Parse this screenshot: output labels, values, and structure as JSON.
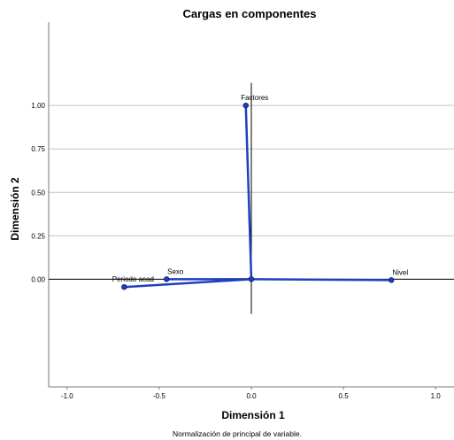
{
  "chart_data": {
    "type": "scatter",
    "title": "Cargas en componentes",
    "xlabel": "Dimensión 1",
    "ylabel": "Dimensión 2",
    "footnote": "Normalización de principal de variable.",
    "xlim": [
      -1.1,
      1.1
    ],
    "ylim": [
      -0.62,
      1.48
    ],
    "xticks": [
      -1.0,
      -0.5,
      0.0,
      0.5,
      1.0
    ],
    "xtick_labels": [
      "-1.0",
      "-0.5",
      "0.0",
      "0.5",
      "1.0"
    ],
    "yticks": [
      0.0,
      0.25,
      0.5,
      0.75,
      1.0
    ],
    "ytick_labels": [
      "0.00",
      "0.25",
      "0.50",
      "0.75",
      "1.00"
    ],
    "grid": "horizontal",
    "line_color": "#1f3fbf",
    "points": [
      {
        "label": "Factores",
        "x": -0.03,
        "y": 1.0
      },
      {
        "label": "Sexo",
        "x": -0.46,
        "y": 0.0
      },
      {
        "label": "Periodo acad",
        "x": -0.69,
        "y": -0.045
      },
      {
        "label": "Nivel",
        "x": 0.76,
        "y": -0.005
      }
    ]
  }
}
